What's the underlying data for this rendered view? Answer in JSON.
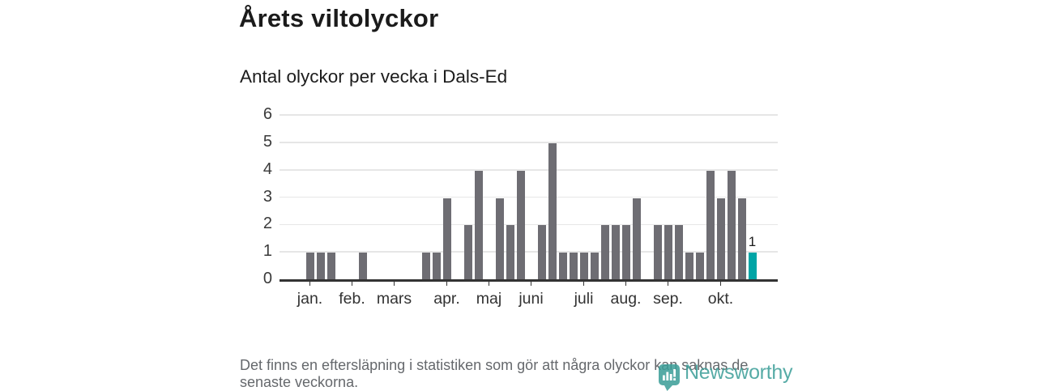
{
  "header": {
    "title": "Årets viltolyckor",
    "subtitle": "Antal olyckor per vecka i Dals-Ed"
  },
  "chart_data": {
    "type": "bar",
    "title": "Årets viltolyckor",
    "subtitle": "Antal olyckor per vecka i Dals-Ed",
    "x_unit": "vecka",
    "weeks": [
      1,
      2,
      3,
      4,
      5,
      6,
      7,
      8,
      9,
      10,
      11,
      12,
      13,
      14,
      15,
      16,
      17,
      18,
      19,
      20,
      21,
      22,
      23,
      24,
      25,
      26,
      27,
      28,
      29,
      30,
      31,
      32,
      33,
      34,
      35,
      36,
      37,
      38,
      39,
      40,
      41,
      42,
      43
    ],
    "values": [
      1,
      1,
      1,
      0,
      0,
      1,
      0,
      0,
      0,
      0,
      0,
      1,
      1,
      3,
      0,
      2,
      4,
      0,
      3,
      2,
      4,
      0,
      2,
      5,
      1,
      1,
      1,
      1,
      2,
      2,
      2,
      3,
      0,
      2,
      2,
      2,
      1,
      1,
      4,
      3,
      4,
      3,
      1
    ],
    "month_ticks": [
      {
        "label": "jan.",
        "week": 1
      },
      {
        "label": "feb.",
        "week": 5
      },
      {
        "label": "mars",
        "week": 9
      },
      {
        "label": "apr.",
        "week": 14
      },
      {
        "label": "maj",
        "week": 18
      },
      {
        "label": "juni",
        "week": 22
      },
      {
        "label": "juli",
        "week": 27
      },
      {
        "label": "aug.",
        "week": 31
      },
      {
        "label": "sep.",
        "week": 35
      },
      {
        "label": "okt.",
        "week": 40
      }
    ],
    "yticks": [
      0,
      1,
      2,
      3,
      4,
      5,
      6
    ],
    "ylim": [
      0,
      6
    ],
    "grid": true,
    "highlight_last": true,
    "last_value_label": "1",
    "colors": {
      "bar": "#6e6d73",
      "highlight": "#00a5a6",
      "grid": "#e6e6e6",
      "axis": "#333333"
    }
  },
  "footer": {
    "note": "Det finns en eftersläpning i statistiken som gör att några olyckor kan saknas de senaste veckorna."
  },
  "logo": {
    "wordmark": "Newsworthy"
  }
}
